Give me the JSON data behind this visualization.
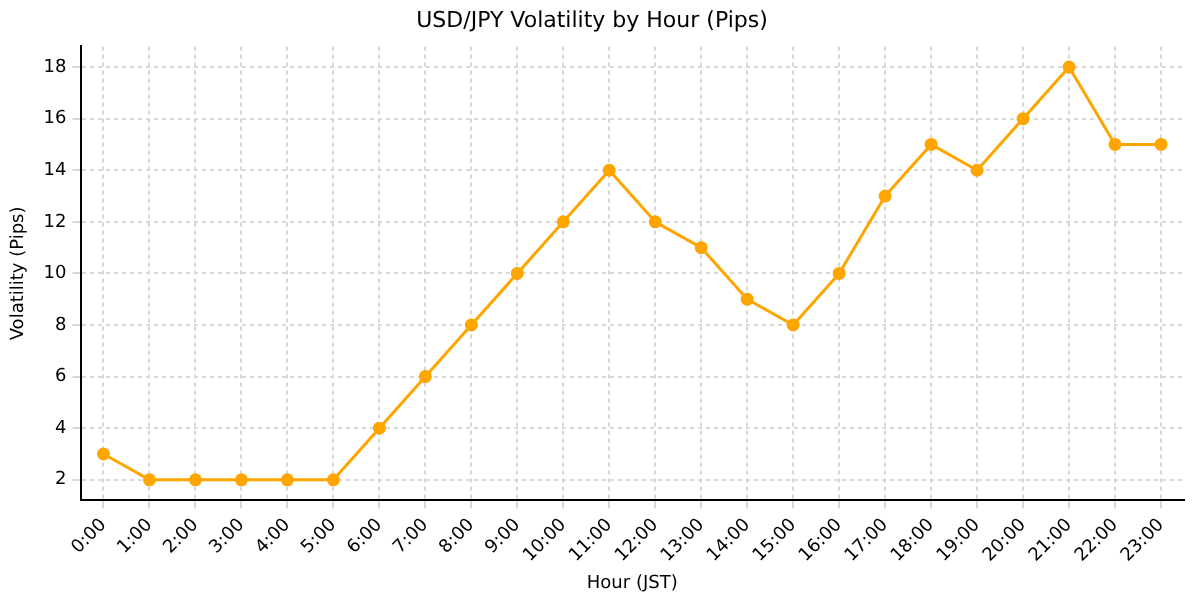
{
  "chart_data": {
    "type": "line",
    "title": "USD/JPY Volatility by Hour (Pips)",
    "xlabel": "Hour (JST)",
    "ylabel": "Volatility (Pips)",
    "categories": [
      "0:00",
      "1:00",
      "2:00",
      "3:00",
      "4:00",
      "5:00",
      "6:00",
      "7:00",
      "8:00",
      "9:00",
      "10:00",
      "11:00",
      "12:00",
      "13:00",
      "14:00",
      "15:00",
      "16:00",
      "17:00",
      "18:00",
      "19:00",
      "20:00",
      "21:00",
      "22:00",
      "23:00"
    ],
    "series": [
      {
        "color": "#ffa500",
        "values": [
          3,
          2,
          2,
          2,
          2,
          2,
          4,
          6,
          8,
          10,
          12,
          14,
          12,
          11,
          9,
          8,
          10,
          13,
          15,
          14,
          16,
          18,
          15,
          15
        ]
      }
    ],
    "ylim": [
      1.2,
      18.8
    ],
    "yticks": [
      2,
      4,
      6,
      8,
      10,
      12,
      14,
      16,
      18
    ],
    "grid": true,
    "legend": false,
    "marker": "circle",
    "line_style": "solid"
  }
}
